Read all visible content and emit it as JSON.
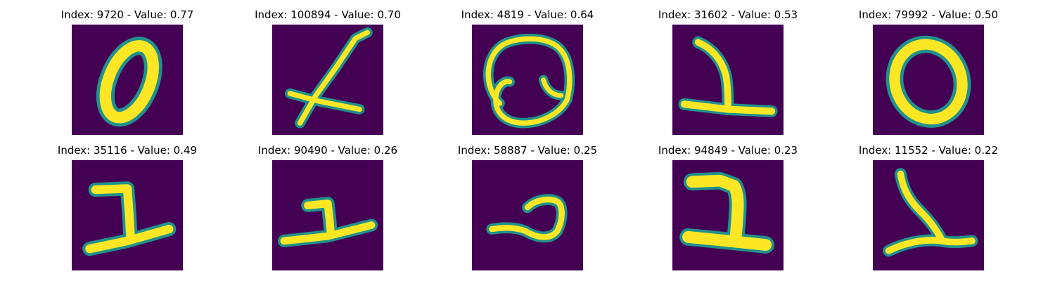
{
  "background_color": "#440154",
  "stroke_color": "#fde725",
  "edge_color": "#21918c",
  "tiles": [
    {
      "title": "Index: 9720 - Value: 0.77",
      "digit": "0"
    },
    {
      "title": "Index: 100894 - Value: 0.70",
      "digit": "slanted stroke"
    },
    {
      "title": "Index: 4819 - Value: 0.64",
      "digit": "loop with inner curls"
    },
    {
      "title": "Index: 31602 - Value: 0.53",
      "digit": "1"
    },
    {
      "title": "Index: 79992 - Value: 0.50",
      "digit": "0"
    },
    {
      "title": "Index: 35116 - Value: 0.49",
      "digit": "1"
    },
    {
      "title": "Index: 90490 - Value: 0.26",
      "digit": "1"
    },
    {
      "title": "Index: 58887 - Value: 0.25",
      "digit": "curl"
    },
    {
      "title": "Index: 94849 - Value: 0.23",
      "digit": "2"
    },
    {
      "title": "Index: 11552 - Value: 0.22",
      "digit": "1"
    }
  ]
}
